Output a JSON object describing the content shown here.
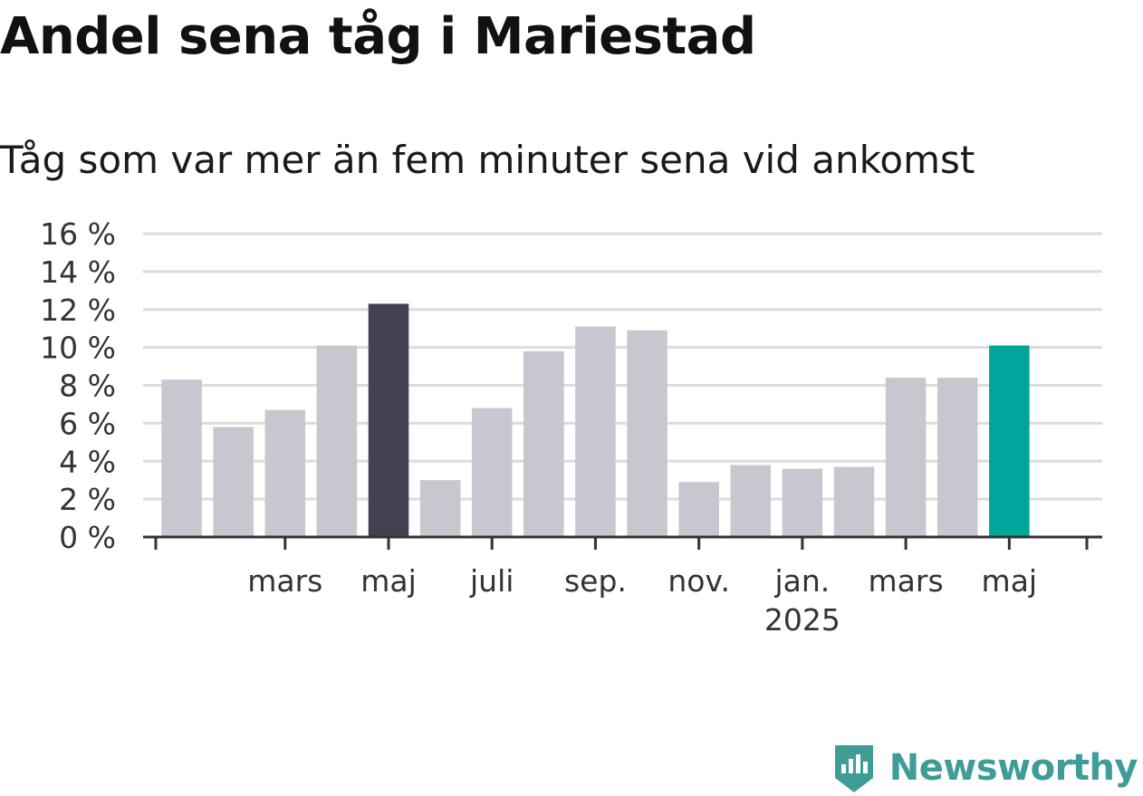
{
  "title": "Andel sena tåg i Mariestad",
  "subtitle": "Tåg som var mer än fem minuter sena vid ankomst",
  "brand": "Newsworthy",
  "colors": {
    "bar_default": "#c8c7d0",
    "bar_highlight": "#43414f",
    "bar_latest": "#00a59b",
    "grid": "#dcdcdc",
    "axis": "#333333",
    "brand": "#3f9c97"
  },
  "chart_data": {
    "type": "bar",
    "months": [
      "2024-01",
      "2024-02",
      "2024-03",
      "2024-04",
      "2024-05",
      "2024-06",
      "2024-07",
      "2024-08",
      "2024-09",
      "2024-10",
      "2024-11",
      "2024-12",
      "2025-01",
      "2025-02",
      "2025-03",
      "2025-04",
      "2025-05",
      "2025-06"
    ],
    "values": [
      8.3,
      5.8,
      6.7,
      10.1,
      12.3,
      3.0,
      6.8,
      9.8,
      11.1,
      10.9,
      2.9,
      3.8,
      3.6,
      3.7,
      8.4,
      8.4,
      10.1,
      0
    ],
    "highlight_index": 4,
    "latest_index": 16,
    "yticks": [
      "0 %",
      "2 %",
      "4 %",
      "6 %",
      "8 %",
      "10 %",
      "12 %",
      "14 %",
      "16 %"
    ],
    "ylim": [
      0,
      16
    ],
    "xtick_labels": [
      {
        "month": "2024-03",
        "label": "mars"
      },
      {
        "month": "2024-05",
        "label": "maj"
      },
      {
        "month": "2024-07",
        "label": "juli"
      },
      {
        "month": "2024-09",
        "label": "sep."
      },
      {
        "month": "2024-11",
        "label": "nov."
      },
      {
        "month": "2025-01",
        "label": "jan.",
        "sub": "2025"
      },
      {
        "month": "2025-03",
        "label": "mars"
      },
      {
        "month": "2025-05",
        "label": "maj"
      }
    ],
    "grid": true,
    "legend": "none"
  }
}
